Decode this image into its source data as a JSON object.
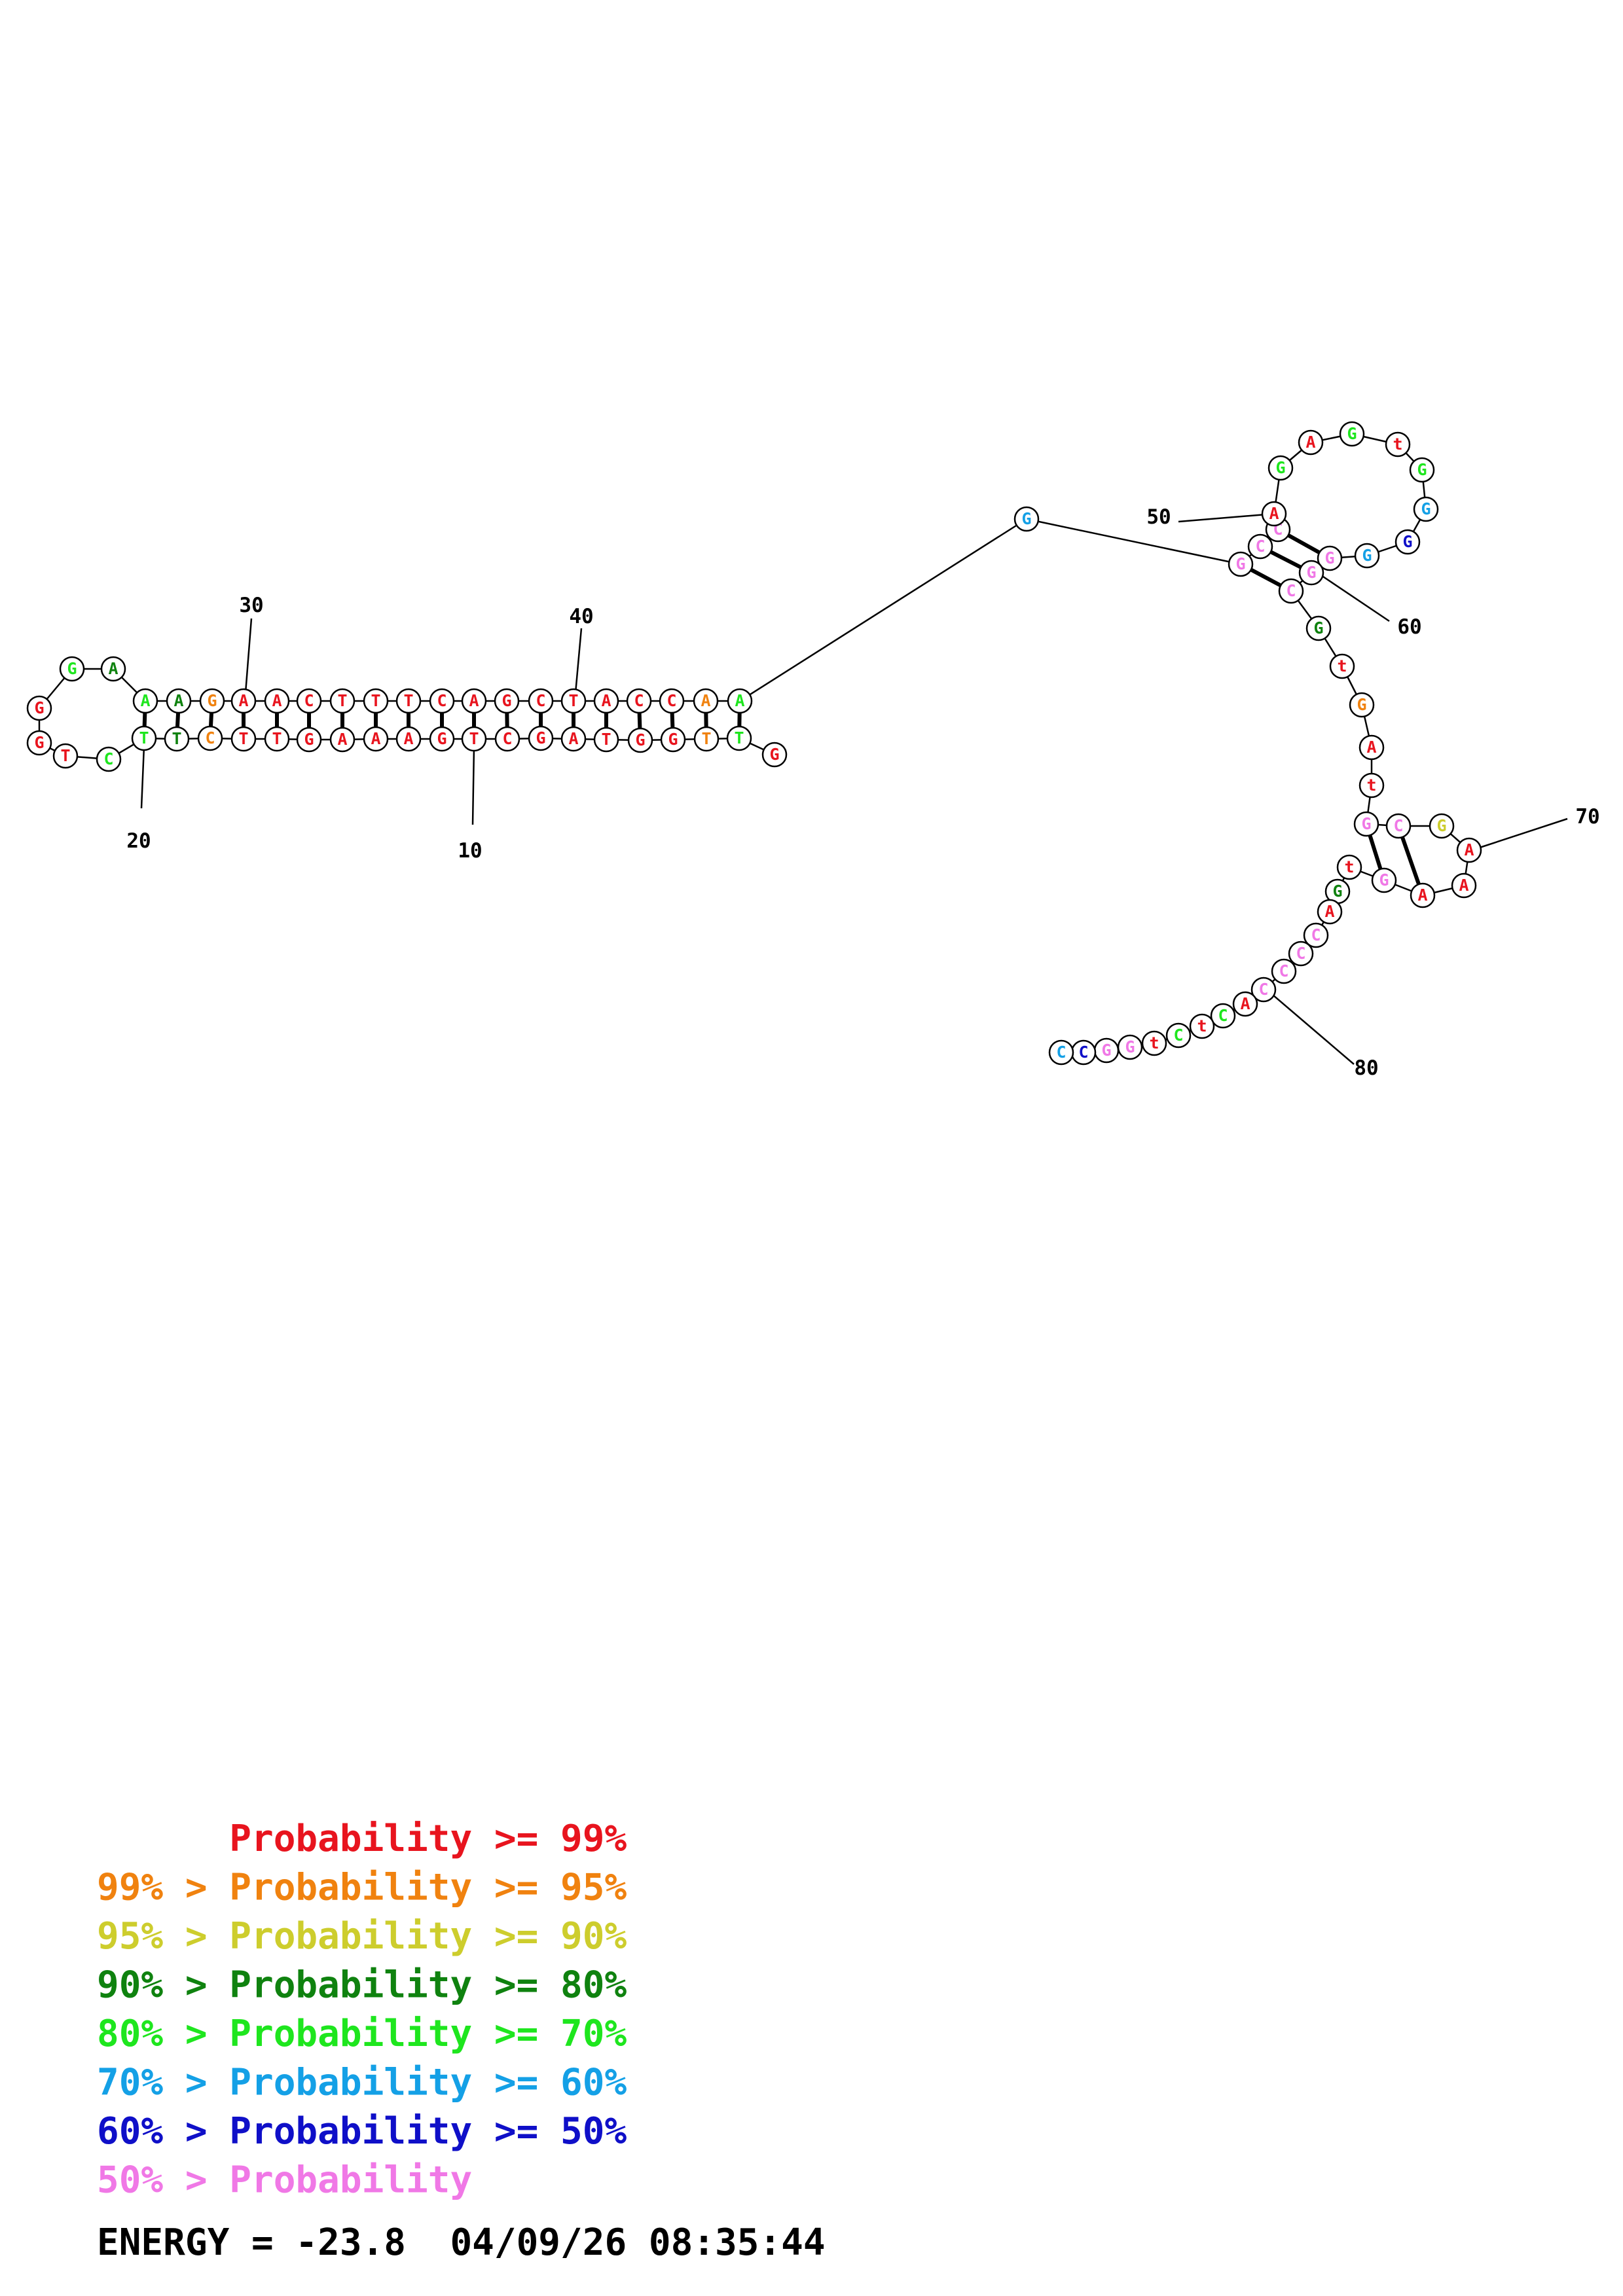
{
  "diagram": {
    "type": "rna-secondary-structure",
    "nucleotides": [
      {
        "n": 1,
        "b": "G",
        "c": "red"
      },
      {
        "n": 2,
        "b": "T",
        "c": "lime"
      },
      {
        "n": 3,
        "b": "T",
        "c": "orange"
      },
      {
        "n": 4,
        "b": "G",
        "c": "red"
      },
      {
        "n": 5,
        "b": "G",
        "c": "red"
      },
      {
        "n": 6,
        "b": "T",
        "c": "red"
      },
      {
        "n": 7,
        "b": "A",
        "c": "red"
      },
      {
        "n": 8,
        "b": "G",
        "c": "red"
      },
      {
        "n": 9,
        "b": "C",
        "c": "red"
      },
      {
        "n": 10,
        "b": "T",
        "c": "red"
      },
      {
        "n": 11,
        "b": "G",
        "c": "red"
      },
      {
        "n": 12,
        "b": "A",
        "c": "red"
      },
      {
        "n": 13,
        "b": "A",
        "c": "red"
      },
      {
        "n": 14,
        "b": "A",
        "c": "red"
      },
      {
        "n": 15,
        "b": "G",
        "c": "red"
      },
      {
        "n": 16,
        "b": "T",
        "c": "red"
      },
      {
        "n": 17,
        "b": "T",
        "c": "red"
      },
      {
        "n": 18,
        "b": "C",
        "c": "orange"
      },
      {
        "n": 19,
        "b": "T",
        "c": "darkgreen"
      },
      {
        "n": 20,
        "b": "T",
        "c": "lime"
      },
      {
        "n": 21,
        "b": "C",
        "c": "lime"
      },
      {
        "n": 22,
        "b": "T",
        "c": "red"
      },
      {
        "n": 23,
        "b": "G",
        "c": "red"
      },
      {
        "n": 24,
        "b": "G",
        "c": "red"
      },
      {
        "n": 25,
        "b": "G",
        "c": "lime"
      },
      {
        "n": 26,
        "b": "A",
        "c": "darkgreen"
      },
      {
        "n": 27,
        "b": "A",
        "c": "lime"
      },
      {
        "n": 28,
        "b": "A",
        "c": "darkgreen"
      },
      {
        "n": 29,
        "b": "G",
        "c": "orange"
      },
      {
        "n": 30,
        "b": "A",
        "c": "red"
      },
      {
        "n": 31,
        "b": "A",
        "c": "red"
      },
      {
        "n": 32,
        "b": "C",
        "c": "red"
      },
      {
        "n": 33,
        "b": "T",
        "c": "red"
      },
      {
        "n": 34,
        "b": "T",
        "c": "red"
      },
      {
        "n": 35,
        "b": "T",
        "c": "red"
      },
      {
        "n": 36,
        "b": "C",
        "c": "red"
      },
      {
        "n": 37,
        "b": "A",
        "c": "red"
      },
      {
        "n": 38,
        "b": "G",
        "c": "red"
      },
      {
        "n": 39,
        "b": "C",
        "c": "red"
      },
      {
        "n": 40,
        "b": "T",
        "c": "red"
      },
      {
        "n": 41,
        "b": "A",
        "c": "red"
      },
      {
        "n": 42,
        "b": "C",
        "c": "red"
      },
      {
        "n": 43,
        "b": "C",
        "c": "red"
      },
      {
        "n": 44,
        "b": "A",
        "c": "orange"
      },
      {
        "n": 45,
        "b": "A",
        "c": "lime"
      },
      {
        "n": 46,
        "b": "G",
        "c": "sky"
      },
      {
        "n": 47,
        "b": "G",
        "c": "pink"
      },
      {
        "n": 48,
        "b": "C",
        "c": "pink"
      },
      {
        "n": 49,
        "b": "C",
        "c": "pink"
      },
      {
        "n": 50,
        "b": "A",
        "c": "red"
      },
      {
        "n": 51,
        "b": "G",
        "c": "lime"
      },
      {
        "n": 52,
        "b": "A",
        "c": "red"
      },
      {
        "n": 53,
        "b": "G",
        "c": "lime"
      },
      {
        "n": 54,
        "b": "t",
        "c": "red"
      },
      {
        "n": 55,
        "b": "G",
        "c": "lime"
      },
      {
        "n": 56,
        "b": "G",
        "c": "sky"
      },
      {
        "n": 57,
        "b": "G",
        "c": "blue"
      },
      {
        "n": 58,
        "b": "G",
        "c": "sky"
      },
      {
        "n": 59,
        "b": "G",
        "c": "pink"
      },
      {
        "n": 60,
        "b": "G",
        "c": "pink"
      },
      {
        "n": 61,
        "b": "C",
        "c": "pink"
      },
      {
        "n": 62,
        "b": "G",
        "c": "darkgreen"
      },
      {
        "n": 63,
        "b": "t",
        "c": "red"
      },
      {
        "n": 64,
        "b": "G",
        "c": "orange"
      },
      {
        "n": 65,
        "b": "A",
        "c": "red"
      },
      {
        "n": 66,
        "b": "t",
        "c": "red"
      },
      {
        "n": 67,
        "b": "G",
        "c": "pink"
      },
      {
        "n": 68,
        "b": "C",
        "c": "pink"
      },
      {
        "n": 69,
        "b": "G",
        "c": "yellow"
      },
      {
        "n": 70,
        "b": "A",
        "c": "red"
      },
      {
        "n": 71,
        "b": "A",
        "c": "red"
      },
      {
        "n": 72,
        "b": "A",
        "c": "red"
      },
      {
        "n": 73,
        "b": "G",
        "c": "pink"
      },
      {
        "n": 74,
        "b": "t",
        "c": "red"
      },
      {
        "n": 75,
        "b": "G",
        "c": "darkgreen"
      },
      {
        "n": 76,
        "b": "A",
        "c": "red"
      },
      {
        "n": 77,
        "b": "C",
        "c": "pink"
      },
      {
        "n": 78,
        "b": "C",
        "c": "pink"
      },
      {
        "n": 79,
        "b": "C",
        "c": "pink"
      },
      {
        "n": 80,
        "b": "C",
        "c": "pink"
      },
      {
        "n": 81,
        "b": "A",
        "c": "red"
      },
      {
        "n": 82,
        "b": "C",
        "c": "lime"
      },
      {
        "n": 83,
        "b": "t",
        "c": "red"
      },
      {
        "n": 84,
        "b": "C",
        "c": "lime"
      },
      {
        "n": 85,
        "b": "t",
        "c": "red"
      },
      {
        "n": 86,
        "b": "G",
        "c": "pink"
      },
      {
        "n": 87,
        "b": "G",
        "c": "pink"
      },
      {
        "n": 88,
        "b": "C",
        "c": "blue"
      },
      {
        "n": 89,
        "b": "C",
        "c": "sky"
      }
    ],
    "pairs": [
      [
        2,
        45
      ],
      [
        3,
        44
      ],
      [
        4,
        43
      ],
      [
        5,
        42
      ],
      [
        6,
        41
      ],
      [
        7,
        40
      ],
      [
        8,
        39
      ],
      [
        9,
        38
      ],
      [
        10,
        37
      ],
      [
        11,
        36
      ],
      [
        12,
        35
      ],
      [
        13,
        34
      ],
      [
        14,
        33
      ],
      [
        15,
        32
      ],
      [
        16,
        31
      ],
      [
        17,
        30
      ],
      [
        18,
        29
      ],
      [
        19,
        28
      ],
      [
        20,
        27
      ],
      [
        47,
        61
      ],
      [
        48,
        60
      ],
      [
        49,
        59
      ],
      [
        67,
        73
      ],
      [
        68,
        72
      ]
    ],
    "index_labels": [
      "10",
      "20",
      "30",
      "40",
      "50",
      "60",
      "70",
      "80"
    ],
    "colors": {
      "red": "#e8141e",
      "orange": "#f0820f",
      "yellow": "#cdcd2d",
      "darkgreen": "#0f820f",
      "lime": "#1ee61e",
      "sky": "#14a0e6",
      "blue": "#0f0fc8",
      "pink": "#f078e6"
    }
  },
  "legend": [
    {
      "text": "      Probability >= 99%",
      "color": "red"
    },
    {
      "text": "99% > Probability >= 95%",
      "color": "orange"
    },
    {
      "text": "95% > Probability >= 90%",
      "color": "yellow"
    },
    {
      "text": "90% > Probability >= 80%",
      "color": "darkgreen"
    },
    {
      "text": "80% > Probability >= 70%",
      "color": "lime"
    },
    {
      "text": "70% > Probability >= 60%",
      "color": "sky"
    },
    {
      "text": "60% > Probability >= 50%",
      "color": "blue"
    },
    {
      "text": "50% > Probability",
      "color": "pink"
    }
  ],
  "footer": {
    "energy_text": "ENERGY = -23.8  04/09/26 08:35:44"
  }
}
